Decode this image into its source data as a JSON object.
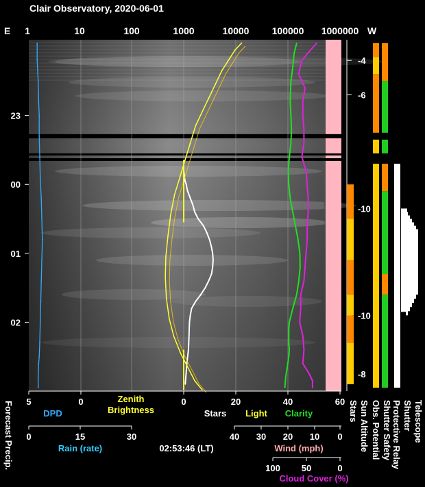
{
  "chart_data": {
    "type": "line",
    "title": "Clair Observatory, 2020-06-01",
    "top_axis": {
      "left_label": "E",
      "right_label": "W",
      "scale": "log",
      "ticks": [
        "1",
        "10",
        "100",
        "1000",
        "10000",
        "100000",
        "1000000"
      ]
    },
    "time_axis": {
      "labels": [
        {
          "label": "23",
          "hour": 23.0
        },
        {
          "label": "00",
          "hour": 24.0
        },
        {
          "label": "01",
          "hour": 25.0
        },
        {
          "label": "02",
          "hour": 26.0
        }
      ],
      "range_hours": [
        21.9,
        27.0
      ]
    },
    "sun_altitude_axis": {
      "labels": [
        {
          "label": "-4",
          "hour": 22.2
        },
        {
          "label": "-6",
          "hour": 22.7
        },
        {
          "label": "-10",
          "hour": 24.35
        },
        {
          "label": "-10",
          "hour": 25.9
        },
        {
          "label": "-8",
          "hour": 26.75
        }
      ]
    },
    "bottom_axes": [
      {
        "name": "dpd_stars_light",
        "ticks": [
          "5",
          "0",
          "0",
          "20",
          "40",
          "60"
        ],
        "range": [
          0,
          60
        ],
        "titles": [
          "DPD",
          "Zenith Brightness",
          "Stars",
          "Light",
          "Clarity"
        ]
      },
      {
        "name": "rain",
        "title": "Rain (rate)",
        "ticks": [
          "0",
          "15",
          "30"
        ]
      },
      {
        "name": "wind",
        "title": "Wind (mph)",
        "ticks": [
          "40",
          "30",
          "20",
          "10",
          "0"
        ]
      },
      {
        "name": "cloud_cover",
        "title": "Cloud Cover (%)",
        "ticks": [
          "100",
          "50",
          "0"
        ]
      }
    ],
    "left_vertical_label": "Forecast Precip.",
    "timestamp": "02:53:46 (LT)",
    "gaps_hours": [
      [
        23.27,
        23.33
      ],
      [
        23.55,
        23.58
      ],
      [
        23.62,
        23.66
      ]
    ],
    "series": [
      {
        "name": "Stars",
        "color": "#ffffff",
        "x_units": "count 0-60",
        "x": [
          0,
          0.5,
          1,
          1.2,
          1.5,
          2.5,
          3.5,
          4.2,
          5.5,
          7.5,
          8.8,
          9.8,
          10.5,
          11.0,
          11.2,
          11.0,
          10.6,
          9.5,
          8.2,
          6.5,
          4.5,
          3.0,
          2.5,
          2.2,
          2.0,
          1.8,
          1.2,
          0.6
        ],
        "t": [
          23.8,
          23.95,
          24.0,
          24.05,
          24.1,
          24.2,
          24.3,
          24.4,
          24.5,
          24.6,
          24.7,
          24.8,
          24.9,
          25.0,
          25.1,
          25.2,
          25.3,
          25.4,
          25.5,
          25.6,
          25.7,
          25.8,
          25.9,
          26.0,
          26.2,
          26.4,
          26.6,
          26.9
        ]
      },
      {
        "name": "Clarity",
        "color": "#22dd22",
        "x_units": "0-60",
        "x": [
          43,
          42,
          41.5,
          40.8,
          40.5,
          40.8,
          41,
          40.8,
          40.2,
          39.8,
          40,
          40.5,
          41.5,
          42.5,
          43.5,
          44.2,
          44.3,
          43.8,
          43,
          41.5,
          40.2,
          40,
          40,
          40,
          40.2,
          40,
          39.6,
          39.2,
          38.8,
          38.5
        ],
        "t": [
          21.95,
          22.1,
          22.3,
          22.5,
          22.8,
          23.0,
          23.2,
          23.4,
          23.6,
          23.8,
          24.0,
          24.2,
          24.4,
          24.6,
          24.8,
          25.0,
          25.2,
          25.4,
          25.6,
          25.8,
          26.0,
          26.1,
          26.2,
          26.3,
          26.4,
          26.5,
          26.6,
          26.7,
          26.8,
          26.95
        ]
      },
      {
        "name": "Cloud Cover",
        "color": "#dd22dd",
        "x_units": "percent 0-100",
        "x": [
          23,
          29,
          37,
          40,
          34,
          36,
          36,
          35,
          35,
          37,
          33,
          32,
          31,
          31,
          32,
          32,
          33,
          34,
          35,
          38,
          38,
          39,
          36,
          35,
          36,
          30,
          27,
          27
        ],
        "t": [
          21.95,
          22.05,
          22.2,
          22.4,
          22.6,
          22.8,
          23.0,
          23.2,
          23.4,
          23.6,
          23.8,
          24.0,
          24.2,
          24.4,
          24.6,
          24.8,
          25.0,
          25.2,
          25.4,
          25.6,
          25.8,
          26.0,
          26.2,
          26.4,
          26.6,
          26.75,
          26.85,
          26.95
        ]
      },
      {
        "name": "DPD",
        "color": "#33aaff",
        "x_units": "0-5",
        "x": [
          4.2,
          4.2,
          4.1,
          4.05,
          4.0,
          4.0,
          3.95,
          3.9,
          3.8,
          3.75,
          3.7,
          3.75,
          3.8,
          3.85,
          3.9,
          3.95,
          4.0,
          4.05,
          4.1,
          4.1
        ],
        "t": [
          21.95,
          22.2,
          22.5,
          22.8,
          23.0,
          23.3,
          23.6,
          23.9,
          24.2,
          24.5,
          24.8,
          25.1,
          25.4,
          25.7,
          26.0,
          26.3,
          26.5,
          26.6,
          26.8,
          26.95
        ]
      },
      {
        "name": "Zenith Brightness",
        "color": "#ffff33",
        "x_units": "magnitude 0-60 scale",
        "x": [
          22,
          19.5,
          17,
          14.5,
          12,
          9.5,
          7,
          4.5,
          2.5,
          0.5,
          -1.5,
          -3.5,
          -5,
          -6,
          -6.8,
          -7,
          -6.6,
          -5.5,
          -3.8,
          -1.2,
          1.5,
          4.2,
          7
        ],
        "t": [
          21.95,
          22.05,
          22.2,
          22.35,
          22.55,
          22.75,
          22.95,
          23.15,
          23.4,
          23.65,
          23.9,
          24.15,
          24.45,
          24.75,
          25.05,
          25.35,
          25.65,
          25.95,
          26.2,
          26.45,
          26.65,
          26.85,
          26.98
        ]
      }
    ],
    "status_columns": [
      {
        "name": "Stars"
      },
      {
        "name": "Sun Altitude"
      },
      {
        "name": "Obs. Potential"
      },
      {
        "name": "Shutter Safety"
      },
      {
        "name": "Protective Relay"
      },
      {
        "name": "Shutter"
      },
      {
        "name": "Telescope"
      }
    ],
    "colors": {
      "stars": "#ffffff",
      "light": "#ffff33",
      "clarity": "#22dd22",
      "dpd": "#33aaff",
      "cloud": "#dd22dd",
      "wind": "#ffaaaa",
      "ok": "#22cc22",
      "warn": "#ffcc00",
      "bad": "#ff8800"
    }
  }
}
